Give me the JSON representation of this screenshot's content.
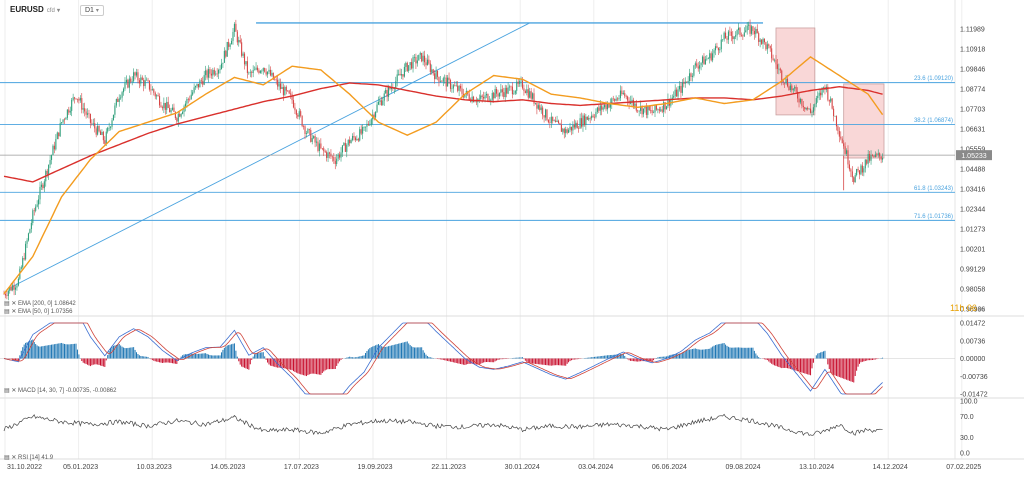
{
  "header": {
    "symbol": "EURUSD",
    "symbol_sub": "cfd",
    "timeframe": "D1"
  },
  "countdown": {
    "value": "11h 06",
    "suffix": "m"
  },
  "indicators": {
    "ema200": {
      "label": "EMA [200, 0]",
      "value": "1.08642",
      "color": "#d9302c"
    },
    "ema50": {
      "label": "EMA [50, 0]",
      "value": "1.07356",
      "color": "#f39c1f"
    },
    "macd": {
      "label": "MACD [14, 30, 7]",
      "values": "-0.00735, -0.00862"
    },
    "rsi": {
      "label": "RSI [14]",
      "value": "41.9"
    }
  },
  "colors": {
    "bull": "#2e9e7a",
    "bear": "#d64545",
    "level": "#4aa3df",
    "ema200": "#d9302c",
    "ema50": "#f39c1f",
    "macd_pos": "#1f77b4",
    "macd_neg": "#c8102e",
    "zone": "#f4b6b6"
  },
  "chart_data": [
    {
      "type": "candlestick",
      "symbol": "EURUSD",
      "timeframe": "D1",
      "x_labels": [
        "31.10.2022",
        "05.01.2023",
        "10.03.2023",
        "14.05.2023",
        "17.07.2023",
        "19.09.2023",
        "22.11.2023",
        "30.01.2024",
        "03.04.2024",
        "06.06.2024",
        "09.08.2024",
        "13.10.2024",
        "14.12.2024",
        "07.02.2025"
      ],
      "y_ticks": [
        "1.11989",
        "1.10918",
        "1.09846",
        "1.08774",
        "1.07703",
        "1.06631",
        "1.05559",
        "1.04488",
        "1.03416",
        "1.02344",
        "1.01273",
        "1.00201",
        "0.99129",
        "0.98058",
        "0.96986"
      ],
      "ylim": [
        0.96986,
        1.1237
      ],
      "last_price": "1.05233",
      "fib_levels": [
        {
          "label": "23.6 (1.09120)",
          "price": 1.0912
        },
        {
          "label": "38.2 (1.06874)",
          "price": 1.06874
        },
        {
          "label": "61.8 (1.03243)",
          "price": 1.03243
        },
        {
          "label": "71.6 (1.01736)",
          "price": 1.01736
        }
      ],
      "top_line_price": 1.1232,
      "series": [
        {
          "name": "EMA [200, 0]",
          "anchors": [
            [
              0,
              1.041
            ],
            [
              20,
              1.038
            ],
            [
              40,
              1.045
            ],
            [
              60,
              1.052
            ],
            [
              80,
              1.058
            ],
            [
              100,
              1.064
            ],
            [
              120,
              1.069
            ],
            [
              140,
              1.073
            ],
            [
              160,
              1.077
            ],
            [
              180,
              1.081
            ],
            [
              200,
              1.084
            ],
            [
              220,
              1.088
            ],
            [
              240,
              1.091
            ],
            [
              260,
              1.09
            ],
            [
              280,
              1.087
            ],
            [
              300,
              1.084
            ],
            [
              320,
              1.082
            ],
            [
              340,
              1.081
            ],
            [
              360,
              1.082
            ],
            [
              380,
              1.08
            ],
            [
              400,
              1.079
            ],
            [
              420,
              1.08
            ],
            [
              440,
              1.081
            ],
            [
              460,
              1.082
            ],
            [
              480,
              1.083
            ],
            [
              500,
              1.083
            ],
            [
              520,
              1.082
            ],
            [
              540,
              1.084
            ],
            [
              560,
              1.087
            ],
            [
              580,
              1.089
            ],
            [
              600,
              1.087
            ],
            [
              610,
              1.085
            ]
          ]
        },
        {
          "name": "EMA [50, 0]",
          "anchors": [
            [
              0,
              0.978
            ],
            [
              20,
              0.998
            ],
            [
              40,
              1.03
            ],
            [
              60,
              1.05
            ],
            [
              80,
              1.065
            ],
            [
              100,
              1.07
            ],
            [
              120,
              1.075
            ],
            [
              140,
              1.085
            ],
            [
              160,
              1.094
            ],
            [
              180,
              1.09
            ],
            [
              200,
              1.1
            ],
            [
              220,
              1.098
            ],
            [
              240,
              1.085
            ],
            [
              260,
              1.07
            ],
            [
              280,
              1.063
            ],
            [
              300,
              1.07
            ],
            [
              320,
              1.085
            ],
            [
              340,
              1.095
            ],
            [
              360,
              1.093
            ],
            [
              380,
              1.085
            ],
            [
              400,
              1.083
            ],
            [
              420,
              1.08
            ],
            [
              440,
              1.078
            ],
            [
              460,
              1.08
            ],
            [
              480,
              1.083
            ],
            [
              500,
              1.08
            ],
            [
              520,
              1.082
            ],
            [
              540,
              1.092
            ],
            [
              560,
              1.105
            ],
            [
              580,
              1.095
            ],
            [
              600,
              1.085
            ],
            [
              610,
              1.074
            ]
          ]
        },
        {
          "name": "Price",
          "anchors": [
            [
              0,
              0.978
            ],
            [
              10,
              0.985
            ],
            [
              20,
              1.02
            ],
            [
              30,
              1.045
            ],
            [
              40,
              1.07
            ],
            [
              50,
              1.085
            ],
            [
              60,
              1.07
            ],
            [
              70,
              1.06
            ],
            [
              80,
              1.085
            ],
            [
              90,
              1.095
            ],
            [
              100,
              1.09
            ],
            [
              110,
              1.08
            ],
            [
              120,
              1.073
            ],
            [
              130,
              1.085
            ],
            [
              140,
              1.095
            ],
            [
              150,
              1.1
            ],
            [
              160,
              1.12
            ],
            [
              170,
              1.095
            ],
            [
              180,
              1.1
            ],
            [
              190,
              1.09
            ],
            [
              200,
              1.082
            ],
            [
              210,
              1.065
            ],
            [
              220,
              1.055
            ],
            [
              230,
              1.05
            ],
            [
              240,
              1.06
            ],
            [
              250,
              1.065
            ],
            [
              260,
              1.08
            ],
            [
              270,
              1.09
            ],
            [
              280,
              1.1
            ],
            [
              290,
              1.105
            ],
            [
              300,
              1.095
            ],
            [
              310,
              1.09
            ],
            [
              320,
              1.085
            ],
            [
              330,
              1.082
            ],
            [
              340,
              1.085
            ],
            [
              350,
              1.087
            ],
            [
              360,
              1.09
            ],
            [
              370,
              1.08
            ],
            [
              380,
              1.07
            ],
            [
              390,
              1.065
            ],
            [
              400,
              1.07
            ],
            [
              410,
              1.075
            ],
            [
              420,
              1.08
            ],
            [
              430,
              1.085
            ],
            [
              440,
              1.078
            ],
            [
              450,
              1.075
            ],
            [
              460,
              1.08
            ],
            [
              470,
              1.088
            ],
            [
              480,
              1.1
            ],
            [
              490,
              1.105
            ],
            [
              500,
              1.115
            ],
            [
              510,
              1.118
            ],
            [
              520,
              1.12
            ],
            [
              530,
              1.11
            ],
            [
              540,
              1.095
            ],
            [
              550,
              1.085
            ],
            [
              560,
              1.075
            ],
            [
              570,
              1.09
            ],
            [
              580,
              1.065
            ],
            [
              590,
              1.04
            ],
            [
              600,
              1.05
            ],
            [
              610,
              1.052
            ]
          ]
        }
      ],
      "zones": [
        {
          "from": 536,
          "to": 563,
          "ylim": [
            1.0739,
            1.1205
          ]
        },
        {
          "from": 583,
          "to": 611,
          "ylim": [
            1.0508,
            1.0905
          ]
        }
      ]
    },
    {
      "type": "bar",
      "title": "MACD [14, 30, 7]",
      "y_ticks": [
        "0.01472",
        "0.00736",
        "0.00000",
        "-0.00736",
        "-0.01472"
      ],
      "ylim": [
        -0.01472,
        0.01472
      ],
      "values_text": "-0.00735, -0.00862"
    },
    {
      "type": "line",
      "title": "RSI [14]",
      "y_ticks": [
        "100.0",
        "70.0",
        "30.0",
        "0.0"
      ],
      "ylim": [
        0,
        100
      ],
      "last_value": "41.9",
      "anchors": [
        [
          0,
          45
        ],
        [
          20,
          70
        ],
        [
          40,
          60
        ],
        [
          60,
          55
        ],
        [
          80,
          60
        ],
        [
          100,
          52
        ],
        [
          120,
          62
        ],
        [
          140,
          55
        ],
        [
          160,
          68
        ],
        [
          180,
          42
        ],
        [
          200,
          45
        ],
        [
          220,
          38
        ],
        [
          240,
          55
        ],
        [
          260,
          62
        ],
        [
          280,
          60
        ],
        [
          300,
          52
        ],
        [
          320,
          50
        ],
        [
          340,
          55
        ],
        [
          360,
          45
        ],
        [
          380,
          52
        ],
        [
          400,
          50
        ],
        [
          420,
          55
        ],
        [
          440,
          52
        ],
        [
          460,
          45
        ],
        [
          480,
          60
        ],
        [
          500,
          70
        ],
        [
          520,
          62
        ],
        [
          540,
          48
        ],
        [
          560,
          35
        ],
        [
          570,
          42
        ],
        [
          580,
          55
        ],
        [
          590,
          38
        ],
        [
          600,
          45
        ],
        [
          610,
          42
        ]
      ]
    }
  ]
}
